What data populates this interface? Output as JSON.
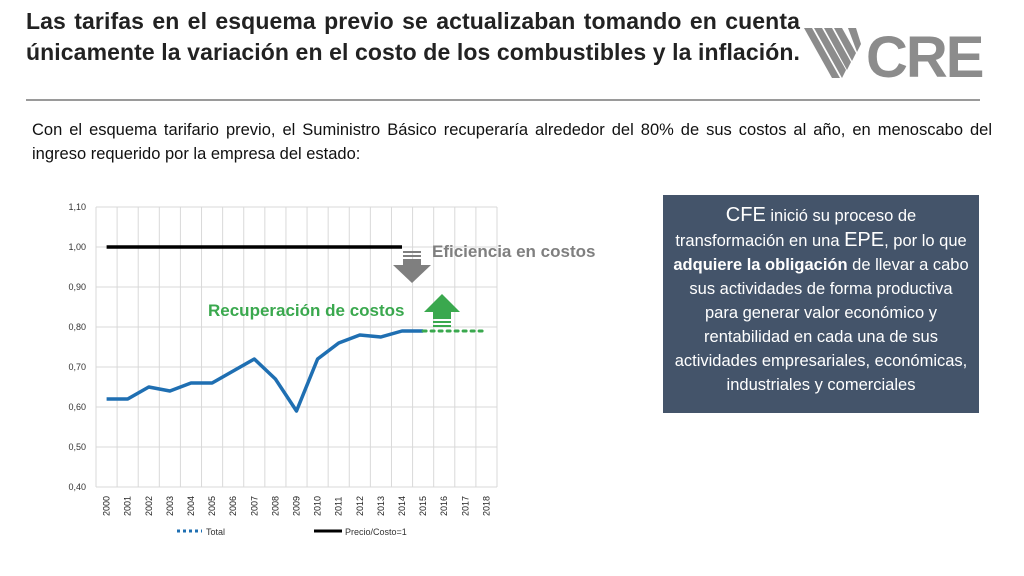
{
  "header": {
    "title": "Las tarifas en el esquema previo se actualizaban tomando en cuenta únicamente la variación en el costo de los combustibles y la inflación.",
    "logo_text": "CRE"
  },
  "intro": {
    "text": "Con el esquema tarifario previo, el Suministro Básico recuperaría alrededor del 80% de sus costos al año, en menoscabo del ingreso requerido por la empresa del estado:"
  },
  "annotations": {
    "efficiency_label": "Eficiencia en costos",
    "recovery_label": "Recuperación de costos"
  },
  "info_box": {
    "p1": "CFE",
    "p2": " inició su proceso de transformación en una ",
    "p3": "EPE",
    "p4": ", por lo que ",
    "p5": "adquiere la obligación",
    "p6": " de llevar a cabo sus actividades de forma productiva para generar valor económico y rentabilidad en cada una de sus actividades empresariales, económicas, industriales y comerciales"
  },
  "colors": {
    "title_rule": "#9a9a9a",
    "total_line": "#1f6fb2",
    "precio_line": "#000000",
    "efficiency_text": "#7f7f7f",
    "efficiency_arrow": "#7f7f7f",
    "recovery_text": "#3aa84e",
    "recovery_arrow": "#3aa84e",
    "info_box_bg": "#44546a"
  },
  "chart_data": {
    "type": "line",
    "categories": [
      "2000",
      "2001",
      "2002",
      "2003",
      "2004",
      "2005",
      "2006",
      "2007",
      "2008",
      "2009",
      "2010",
      "2011",
      "2012",
      "2013",
      "2014",
      "2015",
      "2016",
      "2017",
      "2018"
    ],
    "yticks": [
      "0,40",
      "0,50",
      "0,60",
      "0,70",
      "0,80",
      "0,90",
      "1,00",
      "1,10"
    ],
    "ylim": [
      0.4,
      1.1
    ],
    "grid": true,
    "legend_position": "bottom",
    "series": [
      {
        "name": "Total",
        "values": [
          0.62,
          0.62,
          0.65,
          0.64,
          0.66,
          0.66,
          0.69,
          0.72,
          0.67,
          0.59,
          0.72,
          0.76,
          0.78,
          0.775,
          0.79,
          0.79,
          null,
          null,
          null
        ],
        "projected": [
          null,
          null,
          null,
          null,
          null,
          null,
          null,
          null,
          null,
          null,
          null,
          null,
          null,
          null,
          null,
          0.79,
          0.79,
          0.79,
          0.79
        ]
      },
      {
        "name": "Precio/Costo=1",
        "values": [
          1,
          1,
          1,
          1,
          1,
          1,
          1,
          1,
          1,
          1,
          1,
          1,
          1,
          1,
          1,
          null,
          null,
          null,
          null
        ]
      }
    ]
  }
}
